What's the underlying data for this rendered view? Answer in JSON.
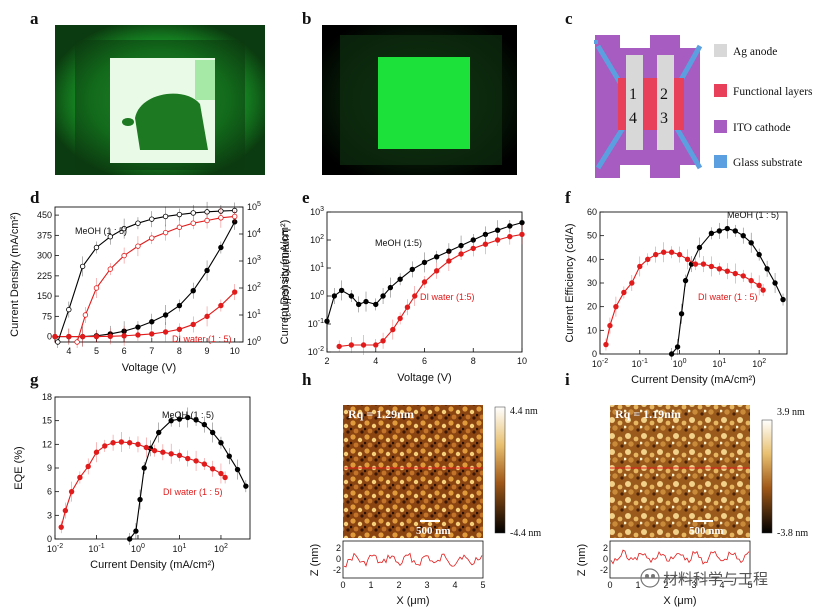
{
  "panel_labels": [
    "a",
    "b",
    "c",
    "d",
    "e",
    "f",
    "g",
    "h",
    "i"
  ],
  "colors": {
    "black": "#000000",
    "red": "#e11b1b",
    "green": "#19d23a",
    "ag": "#d8d8d8",
    "func": "#e8405a",
    "ito": "#a65cc0",
    "glass": "#5b9fe0"
  },
  "device": {
    "pixel_labels": [
      "1",
      "2",
      "4",
      "3"
    ],
    "legend": [
      "Ag anode",
      "Functional layers",
      "ITO cathode",
      "Glass substrate"
    ]
  },
  "watermark": "材料科学与工程",
  "afm": [
    {
      "rq": "Rq = 1.29nm",
      "scale": "500 nm",
      "cb_max": "4.4 nm",
      "cb_min": "-4.4 nm",
      "z_label": "Z (nm)",
      "x_label": "X (μm)",
      "x_ticks": [
        "0",
        "1",
        "2",
        "3",
        "4",
        "5"
      ],
      "z_ticks": [
        "2",
        "0",
        "-2"
      ]
    },
    {
      "rq": "Rq = 1.19nm",
      "scale": "500 nm",
      "cb_max": "3.9 nm",
      "cb_min": "-3.8 nm",
      "z_label": "Z (nm)",
      "x_label": "X (μm)",
      "x_ticks": [
        "0",
        "1",
        "2",
        "3",
        "4",
        "5"
      ],
      "z_ticks": [
        "2",
        "0",
        "-2"
      ]
    }
  ],
  "chart_data": [
    {
      "id": "d",
      "type": "line",
      "xlabel": "Voltage (V)",
      "ylabel": "Current Density (mA/cm²)",
      "y2label": "Luminance (cd/m²)",
      "xlim": [
        3.5,
        10.3
      ],
      "ylim": [
        -20,
        480
      ],
      "y2lim": [
        0,
        5
      ],
      "x_ticks": [
        4,
        5,
        6,
        7,
        8,
        9,
        10
      ],
      "y_ticks": [
        0,
        75,
        150,
        225,
        300,
        375,
        450
      ],
      "y2_ticks": [
        {
          "v": 0,
          "main": "10",
          "sup": "0"
        },
        {
          "v": 1,
          "main": "10",
          "sup": "1"
        },
        {
          "v": 2,
          "main": "10",
          "sup": "2"
        },
        {
          "v": 3,
          "main": "10",
          "sup": "3"
        },
        {
          "v": 4,
          "main": "10",
          "sup": "4"
        },
        {
          "v": 5,
          "main": "10",
          "sup": "5"
        }
      ],
      "annotations": [
        "MeOH (1 : 5)",
        "DI water (1 : 5)"
      ],
      "series": [
        {
          "name": "MeOH J",
          "color": "#000000",
          "filled": true,
          "axis": "y",
          "x": [
            3.5,
            4,
            4.5,
            5,
            5.5,
            6,
            6.5,
            7,
            7.5,
            8,
            8.5,
            9,
            9.5,
            10
          ],
          "values": [
            0,
            0,
            0,
            3,
            10,
            20,
            35,
            55,
            80,
            115,
            170,
            245,
            330,
            425
          ]
        },
        {
          "name": "DI water J",
          "color": "#e11b1b",
          "filled": true,
          "axis": "y",
          "x": [
            3.5,
            4,
            4.5,
            5,
            5.5,
            6,
            6.5,
            7,
            7.5,
            8,
            8.5,
            9,
            9.5,
            10
          ],
          "values": [
            0,
            0,
            0,
            0,
            1,
            3,
            6,
            10,
            17,
            27,
            45,
            75,
            115,
            165
          ]
        },
        {
          "name": "MeOH L",
          "color": "#000000",
          "filled": false,
          "axis": "y2",
          "x": [
            3.6,
            4,
            4.5,
            5,
            5.5,
            6,
            6.5,
            7,
            7.5,
            8,
            8.5,
            9,
            9.5,
            10
          ],
          "values": [
            0,
            1.2,
            2.8,
            3.5,
            3.9,
            4.2,
            4.4,
            4.55,
            4.65,
            4.72,
            4.78,
            4.82,
            4.85,
            4.87
          ]
        },
        {
          "name": "DI water L",
          "color": "#e11b1b",
          "filled": false,
          "axis": "y2",
          "x": [
            4.3,
            4.6,
            5,
            5.5,
            6,
            6.5,
            7,
            7.5,
            8,
            8.5,
            9,
            9.5,
            10
          ],
          "values": [
            0,
            1.0,
            2.0,
            2.7,
            3.2,
            3.55,
            3.85,
            4.05,
            4.25,
            4.4,
            4.5,
            4.6,
            4.65
          ]
        }
      ]
    },
    {
      "id": "e",
      "type": "line",
      "xlabel": "Voltage (V)",
      "ylabel": "Current Density (mA/cm²)",
      "yscale": "log",
      "xlim": [
        2,
        10
      ],
      "ylim": [
        -2,
        3
      ],
      "x_ticks": [
        2,
        4,
        6,
        8,
        10
      ],
      "y_ticks": [
        {
          "v": -2,
          "main": "10",
          "sup": "-2"
        },
        {
          "v": -1,
          "main": "10",
          "sup": "-1"
        },
        {
          "v": 0,
          "main": "10",
          "sup": "0"
        },
        {
          "v": 1,
          "main": "10",
          "sup": "1"
        },
        {
          "v": 2,
          "main": "10",
          "sup": "2"
        },
        {
          "v": 3,
          "main": "10",
          "sup": "3"
        }
      ],
      "annotations": [
        "MeOH (1:5)",
        "DI water (1:5)"
      ],
      "series": [
        {
          "name": "MeOH (1:5)",
          "color": "#000000",
          "filled": true,
          "x": [
            2,
            2.3,
            2.6,
            3,
            3.3,
            3.6,
            4,
            4.3,
            4.6,
            5,
            5.5,
            6,
            6.5,
            7,
            7.5,
            8,
            8.5,
            9,
            9.5,
            10
          ],
          "values": [
            -0.9,
            0.0,
            0.2,
            0.0,
            -0.3,
            -0.2,
            -0.3,
            0.0,
            0.3,
            0.6,
            0.95,
            1.2,
            1.4,
            1.6,
            1.8,
            2.0,
            2.2,
            2.35,
            2.5,
            2.62
          ]
        },
        {
          "name": "DI water (1:5)",
          "color": "#e11b1b",
          "filled": true,
          "x": [
            2.5,
            3,
            3.5,
            4,
            4.3,
            4.7,
            5,
            5.3,
            5.6,
            6,
            6.5,
            7,
            7.5,
            8,
            8.5,
            9,
            9.5,
            10
          ],
          "values": [
            -1.8,
            -1.75,
            -1.75,
            -1.75,
            -1.6,
            -1.2,
            -0.8,
            -0.4,
            0.0,
            0.5,
            0.9,
            1.25,
            1.5,
            1.7,
            1.85,
            2.0,
            2.12,
            2.2
          ]
        }
      ]
    },
    {
      "id": "f",
      "type": "line",
      "xlabel": "Current Density (mA/cm²)",
      "ylabel": "Current Efficiency (cd/A)",
      "xscale": "log",
      "xlim": [
        -2,
        2.7
      ],
      "ylim": [
        0,
        60
      ],
      "x_ticks": [
        {
          "v": -2,
          "main": "10",
          "sup": "-2"
        },
        {
          "v": -1,
          "main": "10",
          "sup": "-1"
        },
        {
          "v": 0,
          "main": "10",
          "sup": "0"
        },
        {
          "v": 1,
          "main": "10",
          "sup": "1"
        },
        {
          "v": 2,
          "main": "10",
          "sup": "2"
        }
      ],
      "y_ticks": [
        0,
        10,
        20,
        30,
        40,
        50,
        60
      ],
      "annotations": [
        "MeOH (1 : 5)",
        "DI water (1 : 5)"
      ],
      "series": [
        {
          "name": "MeOH (1 : 5)",
          "color": "#000000",
          "filled": true,
          "x": [
            -0.2,
            -0.05,
            0.05,
            0.15,
            0.3,
            0.5,
            0.8,
            1.0,
            1.2,
            1.4,
            1.6,
            1.8,
            2.0,
            2.2,
            2.4,
            2.6
          ],
          "values": [
            0,
            3,
            17,
            31,
            38,
            45,
            51,
            52,
            53,
            52,
            50,
            47,
            42,
            36,
            30,
            23
          ]
        },
        {
          "name": "DI water (1 : 5)",
          "color": "#e11b1b",
          "filled": true,
          "x": [
            -1.85,
            -1.75,
            -1.6,
            -1.4,
            -1.2,
            -1.0,
            -0.8,
            -0.6,
            -0.4,
            -0.2,
            0.0,
            0.2,
            0.4,
            0.6,
            0.8,
            1.0,
            1.2,
            1.4,
            1.6,
            1.8,
            2.0,
            2.1
          ],
          "values": [
            4,
            12,
            20,
            26,
            30,
            37,
            40,
            42,
            43,
            43,
            42,
            40,
            38,
            38,
            37,
            36,
            35,
            34,
            33,
            31,
            29,
            27
          ]
        }
      ]
    },
    {
      "id": "g",
      "type": "line",
      "xlabel": "Current Density (mA/cm²)",
      "ylabel": "EQE (%)",
      "xscale": "log",
      "xlim": [
        -2,
        2.7
      ],
      "ylim": [
        0,
        18
      ],
      "x_ticks": [
        {
          "v": -2,
          "main": "10",
          "sup": "-2"
        },
        {
          "v": -1,
          "main": "10",
          "sup": "-1"
        },
        {
          "v": 0,
          "main": "10",
          "sup": "0"
        },
        {
          "v": 1,
          "main": "10",
          "sup": "1"
        },
        {
          "v": 2,
          "main": "10",
          "sup": "2"
        }
      ],
      "y_ticks": [
        0,
        3,
        6,
        9,
        12,
        15,
        18
      ],
      "annotations": [
        "MeOH (1 : 5)",
        "DI water (1 : 5)"
      ],
      "series": [
        {
          "name": "MeOH (1 : 5)",
          "color": "#000000",
          "filled": true,
          "x": [
            -0.2,
            -0.05,
            0.05,
            0.15,
            0.3,
            0.5,
            0.8,
            1.0,
            1.2,
            1.4,
            1.6,
            1.8,
            2.0,
            2.2,
            2.4,
            2.6
          ],
          "values": [
            0,
            1,
            5,
            9,
            11.5,
            13.5,
            15,
            15.2,
            15.4,
            15.1,
            14.5,
            13.5,
            12.2,
            10.5,
            8.8,
            6.7
          ]
        },
        {
          "name": "DI water (1 : 5)",
          "color": "#e11b1b",
          "filled": true,
          "x": [
            -1.85,
            -1.75,
            -1.6,
            -1.4,
            -1.2,
            -1.0,
            -0.8,
            -0.6,
            -0.4,
            -0.2,
            0.0,
            0.2,
            0.4,
            0.6,
            0.8,
            1.0,
            1.2,
            1.4,
            1.6,
            1.8,
            2.0,
            2.1
          ],
          "values": [
            1.5,
            3.6,
            6,
            7.8,
            9.2,
            11,
            11.8,
            12.2,
            12.3,
            12.2,
            12,
            11.6,
            11.2,
            11,
            10.8,
            10.6,
            10.2,
            9.9,
            9.5,
            8.9,
            8.3,
            7.8
          ]
        }
      ]
    }
  ]
}
